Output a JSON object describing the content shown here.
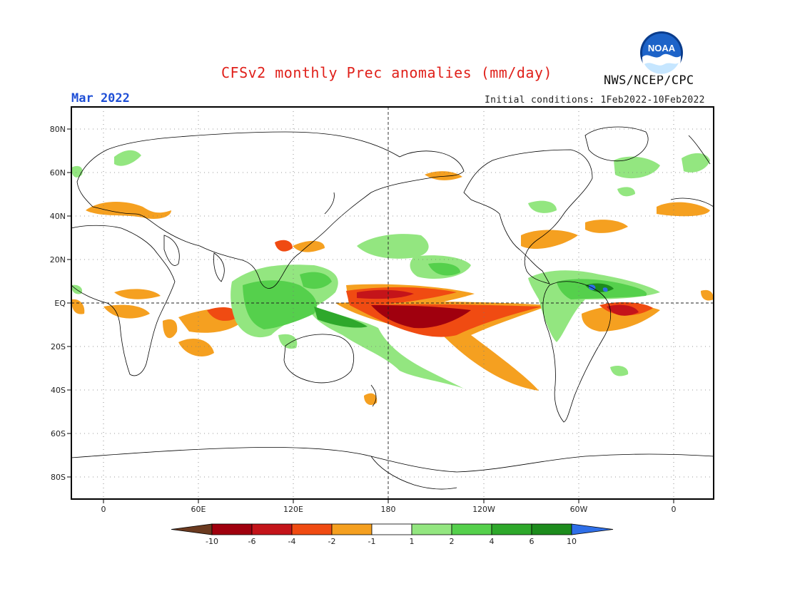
{
  "title": "CFSv2 monthly Prec anomalies (mm/day)",
  "month": "Mar 2022",
  "initial_conditions": "Initial conditions: 1Feb2022-10Feb2022",
  "organization": "NWS/NCEP/CPC",
  "logo_text": "NOAA",
  "map": {
    "lat_labels": [
      "80N",
      "60N",
      "40N",
      "20N",
      "EQ",
      "20S",
      "40S",
      "60S",
      "80S"
    ],
    "lon_labels": [
      "0",
      "60E",
      "120E",
      "180",
      "120W",
      "60W",
      "0"
    ]
  },
  "colorbar": {
    "labels": [
      "-10",
      "-6",
      "-4",
      "-2",
      "-1",
      "1",
      "2",
      "4",
      "6",
      "10"
    ],
    "colors": [
      "#6b3a1f",
      "#a0000e",
      "#c4141a",
      "#f04b12",
      "#f5a020",
      "#ffffff",
      "#93e680",
      "#55d04c",
      "#2ea82b",
      "#1d8c1d",
      "#2f6fe8"
    ]
  }
}
